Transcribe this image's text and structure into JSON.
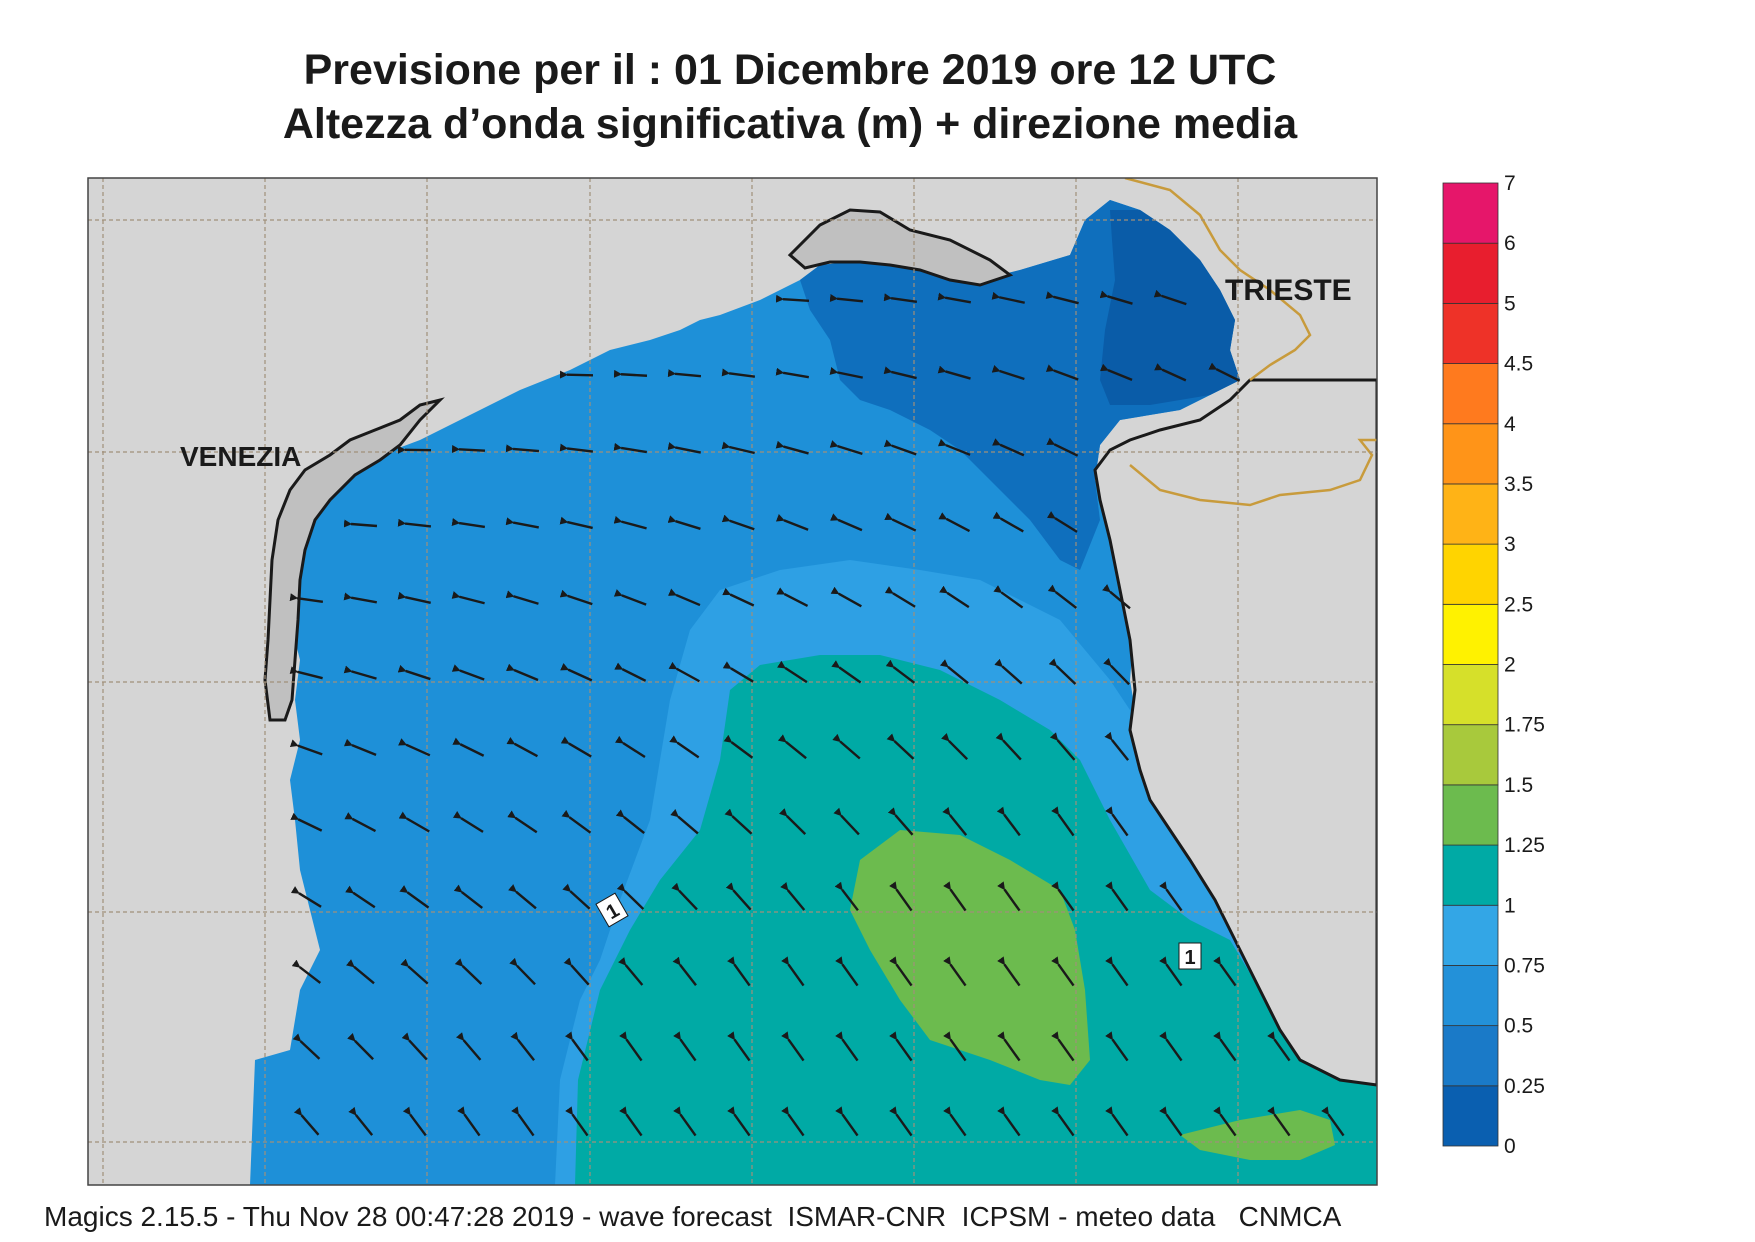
{
  "title_line1": "Previsione per il  :  01 Dicembre  2019   ore 12 UTC",
  "title_line2": "Altezza d’onda significativa (m) + direzione media",
  "footer": "Magics 2.15.5 - Thu Nov 28 00:47:28 2019 - wave forecast  ISMAR-CNR  ICPSM - meteo data   CNMCA",
  "cities": [
    {
      "name": "VENEZIA"
    },
    {
      "name": "TRIESTE"
    }
  ],
  "contour_labels": [
    "1",
    "1"
  ],
  "colorbar": {
    "ticks": [
      "0",
      "0.25",
      "0.5",
      "0.75",
      "1",
      "1.25",
      "1.5",
      "1.75",
      "2",
      "2.5",
      "3",
      "3.5",
      "4",
      "4.5",
      "5",
      "6",
      "7"
    ],
    "colors": [
      "#0a5fb0",
      "#1a7ac8",
      "#2391d9",
      "#33a6e6",
      "#00aaa5",
      "#6cbb4e",
      "#a8c93c",
      "#d6e02a",
      "#fff200",
      "#ffd400",
      "#ffb316",
      "#ff9418",
      "#ff7a1e",
      "#ee3228",
      "#e81e2e",
      "#e6166a"
    ]
  },
  "wave_field": {
    "variable": "significant wave height (m)",
    "units": "m",
    "mean_direction_to": "NW / W"
  }
}
